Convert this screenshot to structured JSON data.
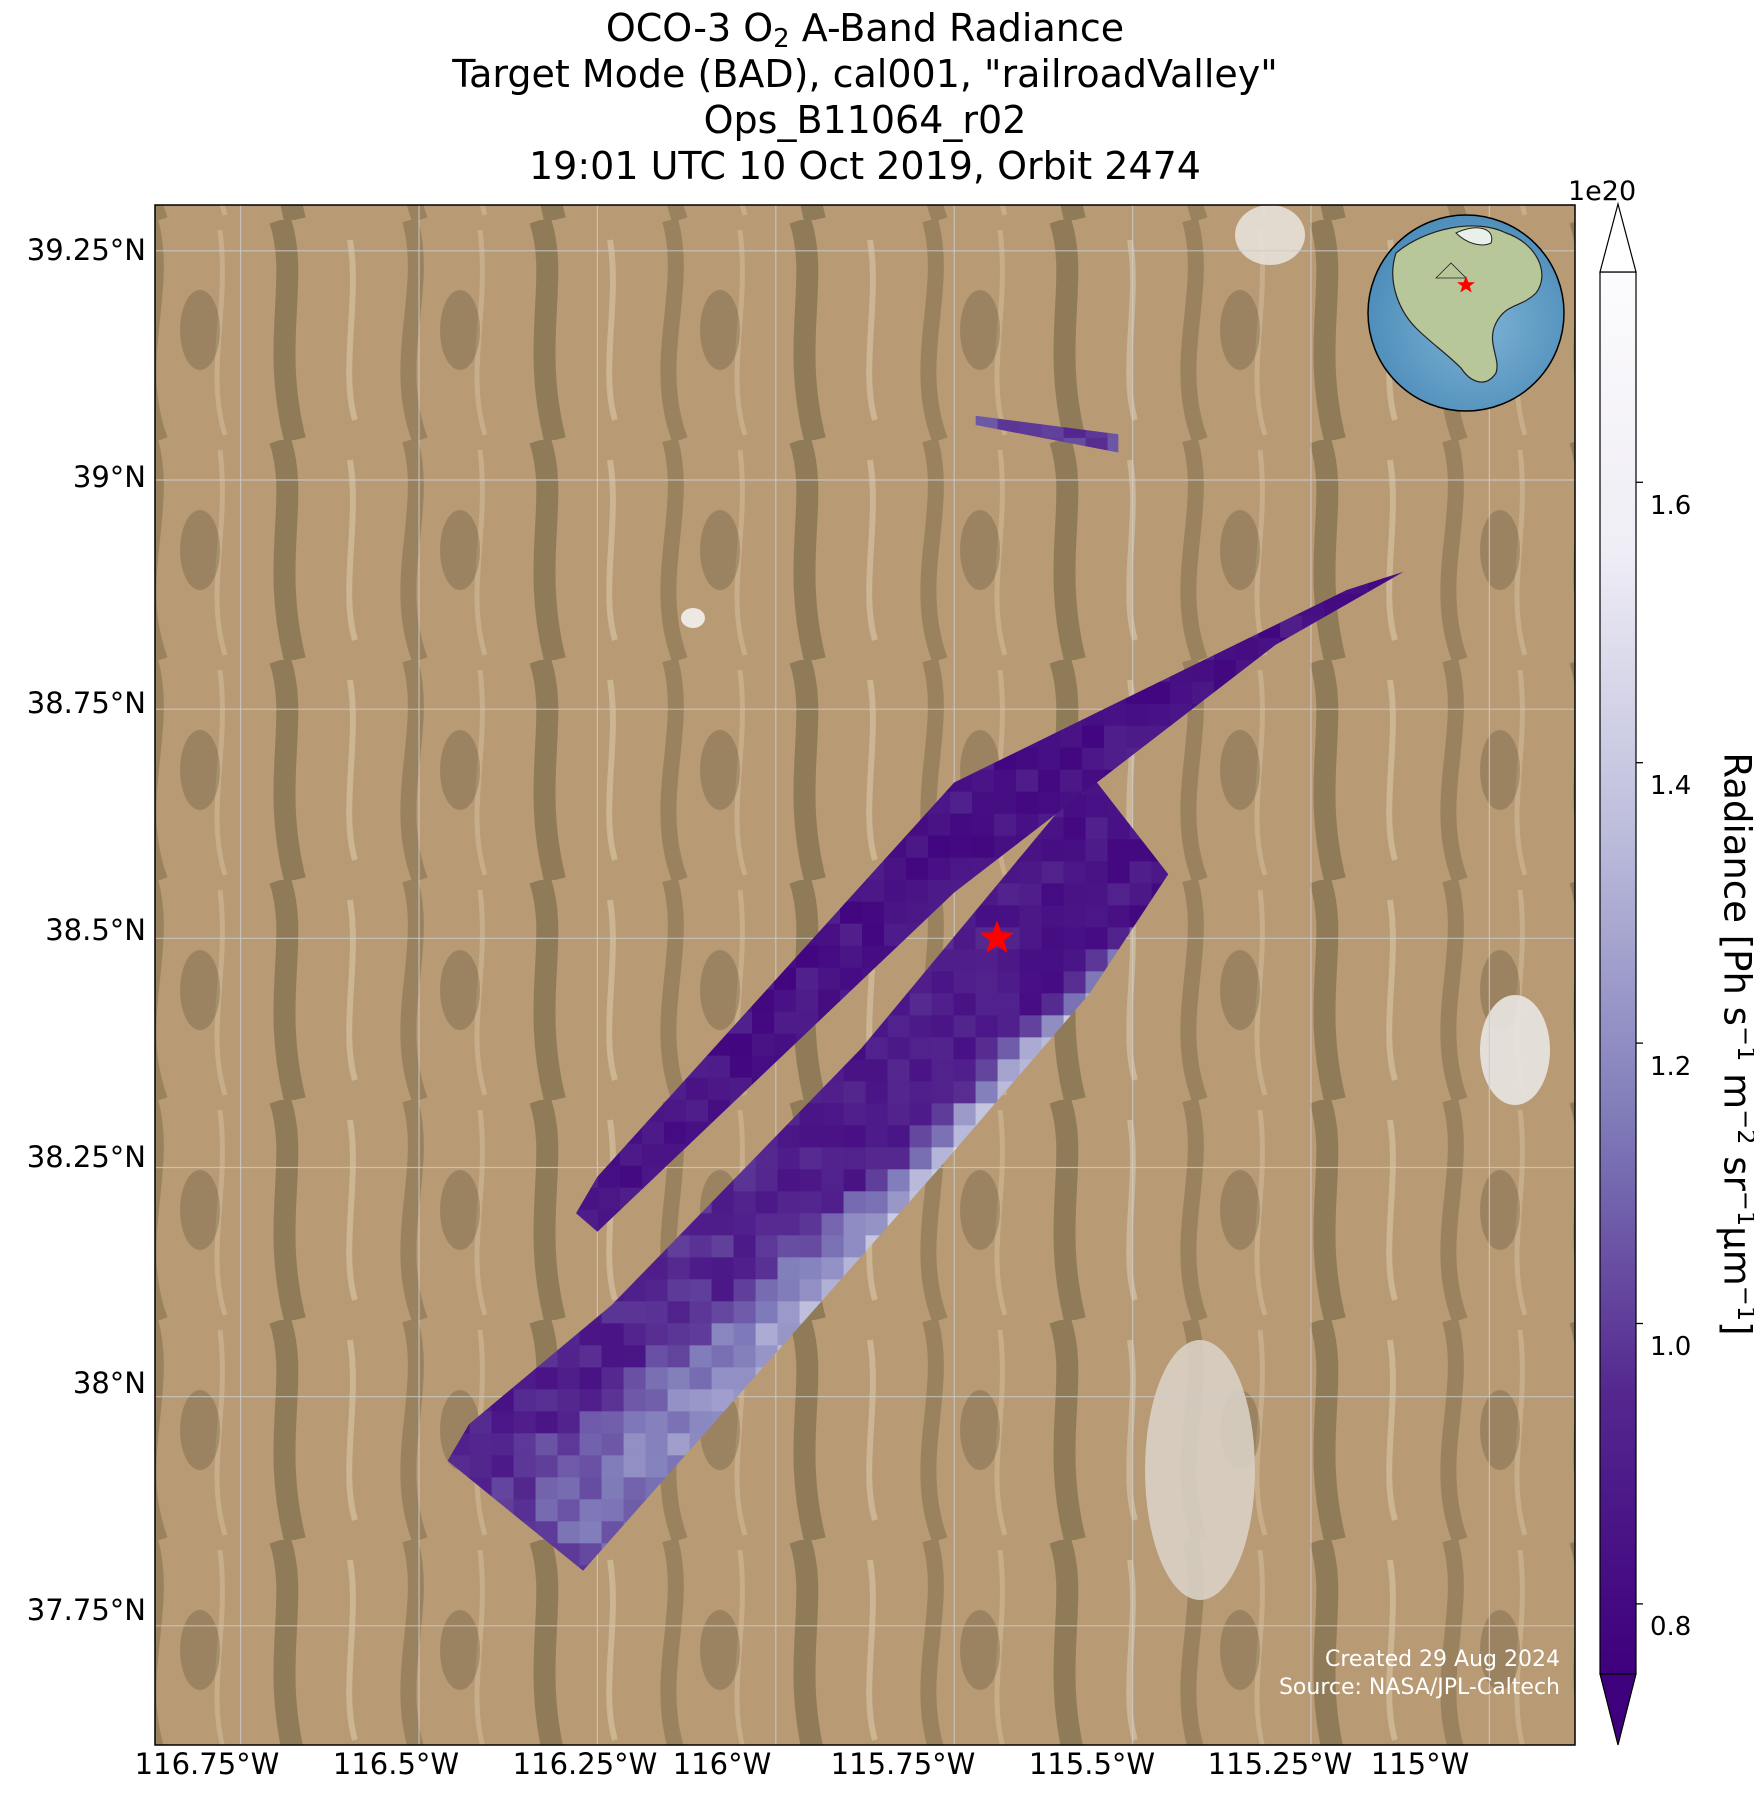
{
  "title": {
    "line1_pre": "OCO-3 O",
    "line1_sub": "2",
    "line1_post": " A-Band Radiance",
    "line2": "Target Mode (BAD), cal001, \"railroadValley\"",
    "line3": "Ops_B11064_r02",
    "line4": "19:01 UTC 10 Oct 2019, Orbit 2474"
  },
  "axes": {
    "lat_ticks": [
      "39.25°N",
      "39°N",
      "38.75°N",
      "38.5°N",
      "38.25°N",
      "38°N",
      "37.75°N"
    ],
    "lon_ticks": [
      "116.75°W",
      "116.5°W",
      "116.25°W",
      "116°W",
      "115.75°W",
      "115.5°W",
      "115.25°W",
      "115°W"
    ],
    "lat_values": [
      39.25,
      39.0,
      38.75,
      38.5,
      38.25,
      38.0,
      37.75
    ],
    "lon_values": [
      -116.75,
      -116.5,
      -116.25,
      -116.0,
      -115.75,
      -115.5,
      -115.25,
      -115.0
    ],
    "grid": true
  },
  "colorbar": {
    "exponent": "1e20",
    "ticks": [
      "1.6",
      "1.4",
      "1.2",
      "1.0",
      "0.8"
    ],
    "tick_values": [
      1.6,
      1.4,
      1.2,
      1.0,
      0.8
    ],
    "range": [
      0.75,
      1.75
    ],
    "extend": "both",
    "colormap": "Purples_r",
    "label_pre": "Radiance [Ph s",
    "label_sup1": "−1",
    "label_mid1": " m",
    "label_sup2": "−2",
    "label_mid2": " sr",
    "label_sup3": "−1",
    "label_mid3": "μm",
    "label_sup4": "−1",
    "label_post": "]"
  },
  "target": {
    "lat": 38.5,
    "lon": -115.69,
    "marker": "red-star"
  },
  "inset": {
    "description_icon": "globe-icon",
    "region": "North America",
    "marker": "red-star"
  },
  "credits": {
    "created": "Created 29 Aug 2024",
    "source": "Source: NASA/JPL-Caltech"
  },
  "colors": {
    "star": "#ff0000",
    "frame": "#000000",
    "grid": "#cccccc"
  },
  "chart_data": {
    "type": "heatmap",
    "xlabel": "",
    "ylabel": "",
    "xlim": [
      -116.87,
      -114.88
    ],
    "ylim": [
      37.62,
      39.3
    ],
    "zlim": [
      0.75,
      1.75
    ],
    "swaths": [
      {
        "corners": [
          [
            -116.46,
            37.93
          ],
          [
            -116.27,
            37.81
          ],
          [
            -115.77,
            38.25
          ],
          [
            -115.56,
            38.44
          ],
          [
            -115.45,
            38.57
          ],
          [
            -115.56,
            38.68
          ],
          [
            -115.88,
            38.38
          ],
          [
            -116.23,
            38.1
          ],
          [
            -116.43,
            37.97
          ]
        ]
      },
      {
        "corners": [
          [
            -116.28,
            38.2
          ],
          [
            -116.25,
            38.18
          ],
          [
            -115.75,
            38.55
          ],
          [
            -115.3,
            38.82
          ],
          [
            -115.12,
            38.9
          ],
          [
            -115.2,
            38.88
          ],
          [
            -115.75,
            38.67
          ],
          [
            -116.25,
            38.24
          ]
        ]
      },
      {
        "corners": [
          [
            -115.72,
            39.06
          ],
          [
            -115.52,
            39.03
          ],
          [
            -115.52,
            39.05
          ],
          [
            -115.72,
            39.07
          ]
        ]
      }
    ],
    "value_profile": [
      {
        "t": 0.0,
        "core": 1.05,
        "edge": 0.9
      },
      {
        "t": 0.15,
        "core": 1.2,
        "edge": 0.92
      },
      {
        "t": 0.3,
        "core": 1.35,
        "edge": 0.95
      },
      {
        "t": 0.45,
        "core": 1.5,
        "edge": 0.88
      },
      {
        "t": 0.6,
        "core": 1.72,
        "edge": 0.9
      },
      {
        "t": 0.75,
        "core": 1.62,
        "edge": 0.85
      },
      {
        "t": 0.9,
        "core": 1.25,
        "edge": 0.82
      },
      {
        "t": 1.0,
        "core": 1.05,
        "edge": 0.8
      }
    ]
  }
}
